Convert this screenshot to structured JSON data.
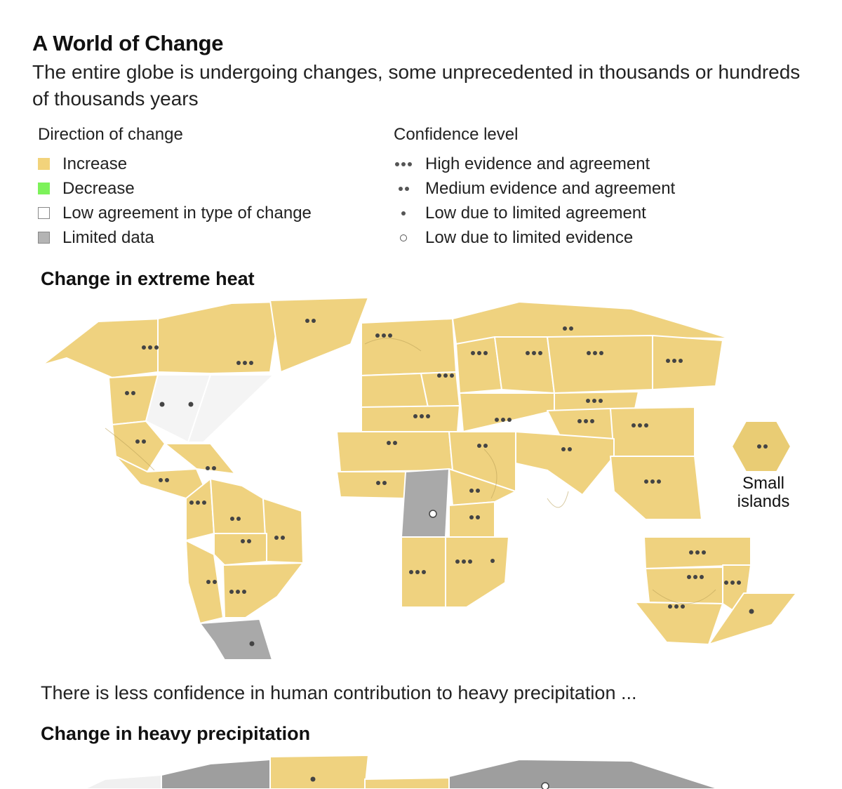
{
  "header": {
    "title": "A World of Change",
    "subtitle": "The entire globe is undergoing changes, some unprecedented in thousands or hundreds of thousands years"
  },
  "legend": {
    "direction": {
      "heading": "Direction of change",
      "items": [
        {
          "label": "Increase",
          "color": "#f2d37b"
        },
        {
          "label": "Decrease",
          "color": "#7df25a"
        },
        {
          "label": "Low agreement in type of change",
          "color": "#ffffff"
        },
        {
          "label": "Limited data",
          "color": "#b4b4b4"
        }
      ]
    },
    "confidence": {
      "heading": "Confidence level",
      "items": [
        {
          "label": "High evidence and agreement",
          "dots": 3
        },
        {
          "label": "Medium evidence and agreement",
          "dots": 2
        },
        {
          "label": "Low due to limited agreement",
          "dots": 1
        },
        {
          "label": "Low due to limited evidence",
          "dots": 0
        }
      ]
    }
  },
  "map_heat": {
    "title": "Change in extreme heat",
    "small_islands_label": "Small islands",
    "colors": {
      "increase": "#efd27f",
      "low_agreement": "#f4f4f4",
      "limited_data": "#a9a9a9",
      "dot": "#444444"
    }
  },
  "transition_note": "There is less confidence in human contribution to heavy precipitation ...",
  "map_precip": {
    "title": "Change in heavy precipitation",
    "colors": {
      "increase": "#efd27f",
      "low_agreement": "#f0f0f0",
      "limited_data": "#9e9e9e"
    }
  }
}
